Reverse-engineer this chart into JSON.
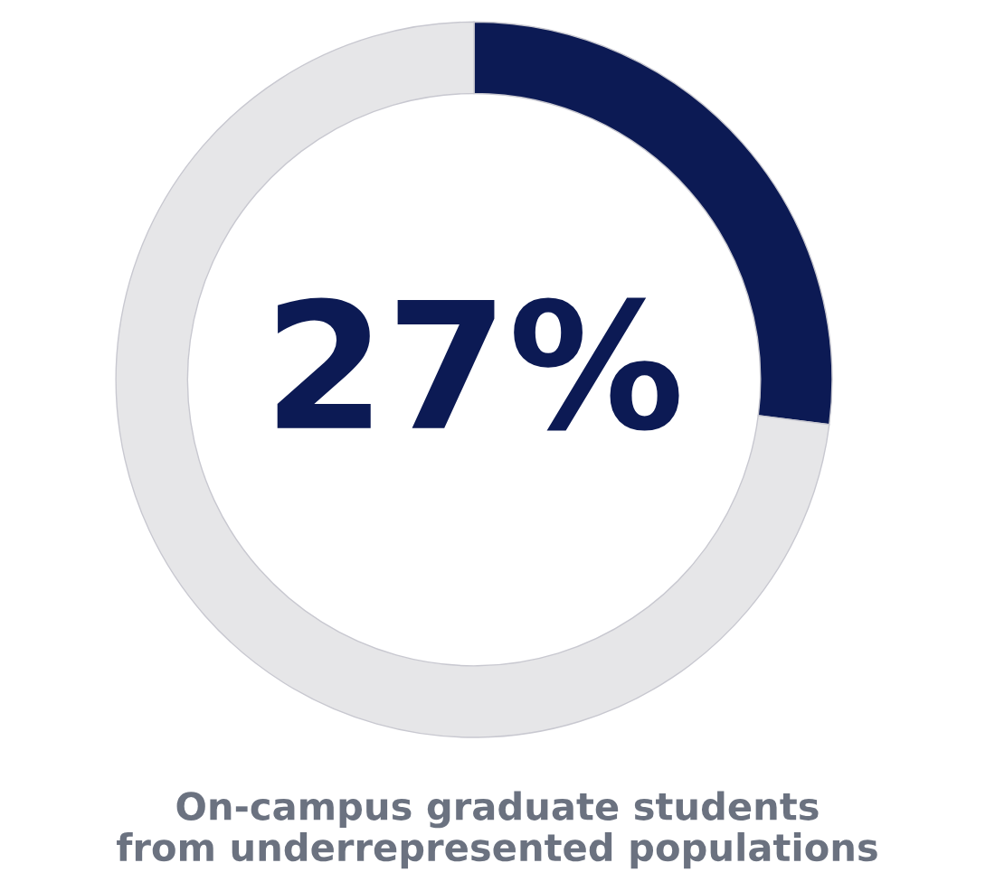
{
  "chart_data": {
    "type": "donut",
    "title": "On-campus graduate students\nfrom underrepresented populations",
    "categories": [
      null,
      null
    ],
    "values": [
      27,
      73
    ],
    "colors": [
      "#0c1a54",
      "#e6e6e8"
    ],
    "value_labels": [
      "27%",
      null
    ]
  }
}
